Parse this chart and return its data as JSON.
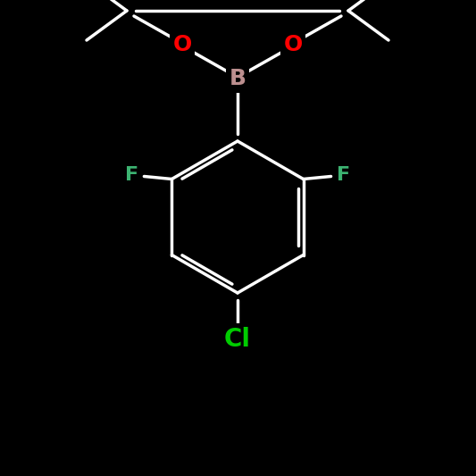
{
  "background_color": "#000000",
  "bond_color": "#ffffff",
  "atom_colors": {
    "O": "#ff0000",
    "B": "#bc8f8f",
    "F": "#3cb371",
    "Cl": "#00cc00",
    "C": "#ffffff"
  },
  "bond_width": 2.0,
  "font_size_atom": 18
}
